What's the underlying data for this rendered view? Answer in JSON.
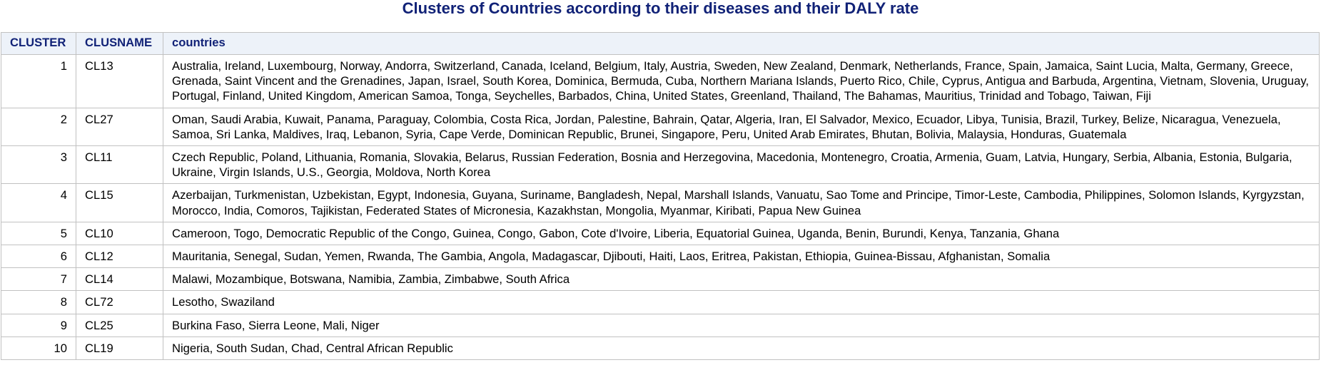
{
  "title": "Clusters of Countries according to their diseases and their DALY rate",
  "table": {
    "headers": {
      "cluster": "CLUSTER",
      "clusname": "CLUSNAME",
      "countries": "countries"
    },
    "rows": [
      {
        "cluster": "1",
        "clusname": "CL13",
        "countries": "Australia, Ireland, Luxembourg, Norway, Andorra, Switzerland, Canada, Iceland, Belgium, Italy, Austria, Sweden, New Zealand, Denmark, Netherlands, France, Spain, Jamaica, Saint Lucia, Malta, Germany, Greece, Grenada, Saint Vincent and the Grenadines, Japan, Israel, South Korea, Dominica, Bermuda, Cuba, Northern Mariana Islands, Puerto Rico, Chile, Cyprus, Antigua and Barbuda, Argentina, Vietnam, Slovenia, Uruguay, Portugal, Finland, United Kingdom, American Samoa, Tonga, Seychelles, Barbados, China, United States, Greenland, Thailand, The Bahamas, Mauritius, Trinidad and Tobago, Taiwan, Fiji"
      },
      {
        "cluster": "2",
        "clusname": "CL27",
        "countries": "Oman, Saudi Arabia, Kuwait, Panama, Paraguay, Colombia, Costa Rica, Jordan, Palestine, Bahrain, Qatar, Algeria, Iran, El Salvador, Mexico, Ecuador, Libya, Tunisia, Brazil, Turkey, Belize, Nicaragua, Venezuela, Samoa, Sri Lanka, Maldives, Iraq, Lebanon, Syria, Cape Verde, Dominican Republic, Brunei, Singapore, Peru, United Arab Emirates, Bhutan, Bolivia, Malaysia, Honduras, Guatemala"
      },
      {
        "cluster": "3",
        "clusname": "CL11",
        "countries": "Czech Republic, Poland, Lithuania, Romania, Slovakia, Belarus, Russian Federation, Bosnia and Herzegovina, Macedonia, Montenegro, Croatia, Armenia, Guam, Latvia, Hungary, Serbia, Albania, Estonia, Bulgaria, Ukraine, Virgin Islands, U.S., Georgia, Moldova, North Korea"
      },
      {
        "cluster": "4",
        "clusname": "CL15",
        "countries": "Azerbaijan, Turkmenistan, Uzbekistan, Egypt, Indonesia, Guyana, Suriname, Bangladesh, Nepal, Marshall Islands, Vanuatu, Sao Tome and Principe, Timor-Leste, Cambodia, Philippines, Solomon Islands, Kyrgyzstan, Morocco, India, Comoros, Tajikistan, Federated States of Micronesia, Kazakhstan, Mongolia, Myanmar, Kiribati, Papua New Guinea"
      },
      {
        "cluster": "5",
        "clusname": "CL10",
        "countries": "Cameroon, Togo, Democratic Republic of the Congo, Guinea, Congo, Gabon, Cote d'Ivoire, Liberia, Equatorial Guinea, Uganda, Benin, Burundi, Kenya, Tanzania, Ghana"
      },
      {
        "cluster": "6",
        "clusname": "CL12",
        "countries": "Mauritania, Senegal, Sudan, Yemen, Rwanda, The Gambia, Angola, Madagascar, Djibouti, Haiti, Laos, Eritrea, Pakistan, Ethiopia, Guinea-Bissau, Afghanistan, Somalia"
      },
      {
        "cluster": "7",
        "clusname": "CL14",
        "countries": "Malawi, Mozambique, Botswana, Namibia, Zambia, Zimbabwe, South Africa"
      },
      {
        "cluster": "8",
        "clusname": "CL72",
        "countries": "Lesotho, Swaziland"
      },
      {
        "cluster": "9",
        "clusname": "CL25",
        "countries": "Burkina Faso, Sierra Leone, Mali, Niger"
      },
      {
        "cluster": "10",
        "clusname": "CL19",
        "countries": "Nigeria, South Sudan, Chad, Central African Republic"
      }
    ]
  },
  "colors": {
    "title": "#112277",
    "header_text": "#112277",
    "header_background": "#edf2f9",
    "border": "#c1c1c1"
  }
}
